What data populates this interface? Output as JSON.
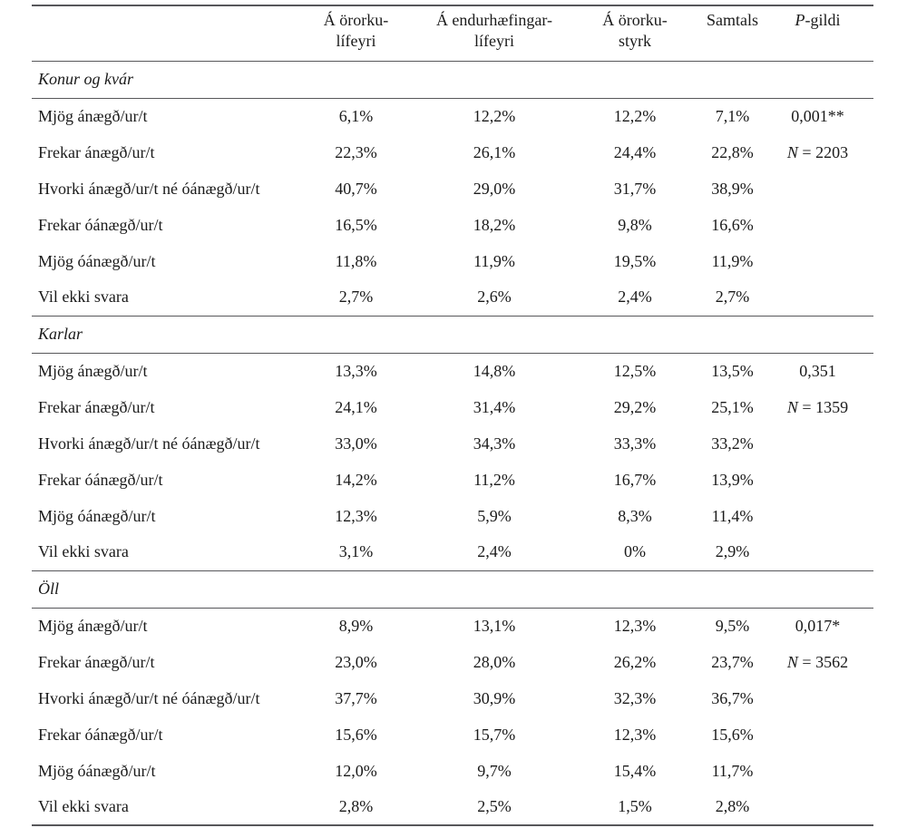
{
  "page": {
    "background": "#ffffff",
    "text_color": "#1a1a1a",
    "rule_color": "#57575a"
  },
  "table": {
    "headers": {
      "col1": "Á örorku-\nlífeyri",
      "col2": "Á endurhæfingar-\nlífeyri",
      "col3": "Á örorku-\nstyrk",
      "col4": "Samtals",
      "p_italic": "P",
      "p_rest": "-gildi"
    },
    "sections": [
      {
        "title": "Konur og kvár",
        "p_value": "0,001**",
        "n_italic": "N",
        "n_rest": " = 2203",
        "rows": [
          {
            "label": "Mjög ánægð/ur/t",
            "values": [
              "6,1%",
              "12,2%",
              "12,2%",
              "7,1%"
            ]
          },
          {
            "label": "Frekar ánægð/ur/t",
            "values": [
              "22,3%",
              "26,1%",
              "24,4%",
              "22,8%"
            ]
          },
          {
            "label": "Hvorki ánægð/ur/t né óánægð/ur/t",
            "values": [
              "40,7%",
              "29,0%",
              "31,7%",
              "38,9%"
            ]
          },
          {
            "label": "Frekar óánægð/ur/t",
            "values": [
              "16,5%",
              "18,2%",
              "9,8%",
              "16,6%"
            ]
          },
          {
            "label": "Mjög óánægð/ur/t",
            "values": [
              "11,8%",
              "11,9%",
              "19,5%",
              "11,9%"
            ]
          },
          {
            "label": "Vil ekki svara",
            "values": [
              "2,7%",
              "2,6%",
              "2,4%",
              "2,7%"
            ]
          }
        ]
      },
      {
        "title": "Karlar",
        "p_value": "0,351",
        "n_italic": "N",
        "n_rest": " = 1359",
        "rows": [
          {
            "label": "Mjög ánægð/ur/t",
            "values": [
              "13,3%",
              "14,8%",
              "12,5%",
              "13,5%"
            ]
          },
          {
            "label": "Frekar ánægð/ur/t",
            "values": [
              "24,1%",
              "31,4%",
              "29,2%",
              "25,1%"
            ]
          },
          {
            "label": "Hvorki ánægð/ur/t né óánægð/ur/t",
            "values": [
              "33,0%",
              "34,3%",
              "33,3%",
              "33,2%"
            ]
          },
          {
            "label": "Frekar óánægð/ur/t",
            "values": [
              "14,2%",
              "11,2%",
              "16,7%",
              "13,9%"
            ]
          },
          {
            "label": "Mjög óánægð/ur/t",
            "values": [
              "12,3%",
              "5,9%",
              "8,3%",
              "11,4%"
            ]
          },
          {
            "label": "Vil ekki svara",
            "values": [
              "3,1%",
              "2,4%",
              "0%",
              "2,9%"
            ]
          }
        ]
      },
      {
        "title": "Öll",
        "p_value": "0,017*",
        "n_italic": "N",
        "n_rest": " = 3562",
        "rows": [
          {
            "label": "Mjög ánægð/ur/t",
            "values": [
              "8,9%",
              "13,1%",
              "12,3%",
              "9,5%"
            ]
          },
          {
            "label": "Frekar ánægð/ur/t",
            "values": [
              "23,0%",
              "28,0%",
              "26,2%",
              "23,7%"
            ]
          },
          {
            "label": "Hvorki ánægð/ur/t né óánægð/ur/t",
            "values": [
              "37,7%",
              "30,9%",
              "32,3%",
              "36,7%"
            ]
          },
          {
            "label": "Frekar óánægð/ur/t",
            "values": [
              "15,6%",
              "15,7%",
              "12,3%",
              "15,6%"
            ]
          },
          {
            "label": "Mjög óánægð/ur/t",
            "values": [
              "12,0%",
              "9,7%",
              "15,4%",
              "11,7%"
            ]
          },
          {
            "label": "Vil ekki svara",
            "values": [
              "2,8%",
              "2,5%",
              "1,5%",
              "2,8%"
            ]
          }
        ]
      }
    ]
  }
}
